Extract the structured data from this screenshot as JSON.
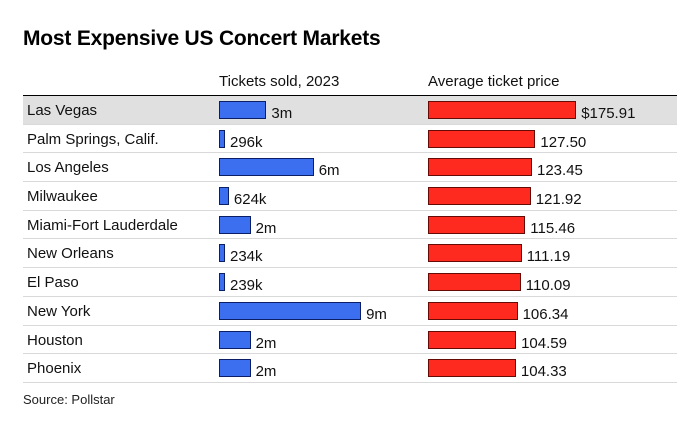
{
  "chart_data": {
    "type": "bar",
    "title": "Most Expensive US Concert Markets",
    "highlight_category": "Las Vegas",
    "categories": [
      "Las Vegas",
      "Palm Springs, Calif.",
      "Los Angeles",
      "Milwaukee",
      "Miami-Fort Lauderdale",
      "New Orleans",
      "El Paso",
      "New York",
      "Houston",
      "Phoenix"
    ],
    "series": [
      {
        "name": "Tickets sold, 2023",
        "values": [
          3000000,
          296000,
          6000000,
          624000,
          2000000,
          234000,
          239000,
          9000000,
          2000000,
          2000000
        ],
        "labels": [
          "3m",
          "296k",
          "6m",
          "624k",
          "2m",
          "234k",
          "239k",
          "9m",
          "2m",
          "2m"
        ],
        "color": "#3b6ff0",
        "xlim": [
          0,
          9500000
        ]
      },
      {
        "name": "Average ticket price",
        "values": [
          175.91,
          127.5,
          123.45,
          121.92,
          115.46,
          111.19,
          110.09,
          106.34,
          104.59,
          104.33
        ],
        "labels": [
          "$175.91",
          "127.50",
          "123.45",
          "121.92",
          "115.46",
          "111.19",
          "110.09",
          "106.34",
          "104.59",
          "104.33"
        ],
        "color": "#ff2a1f",
        "xlim": [
          0,
          178
        ]
      }
    ],
    "source": "Source: Pollstar"
  }
}
